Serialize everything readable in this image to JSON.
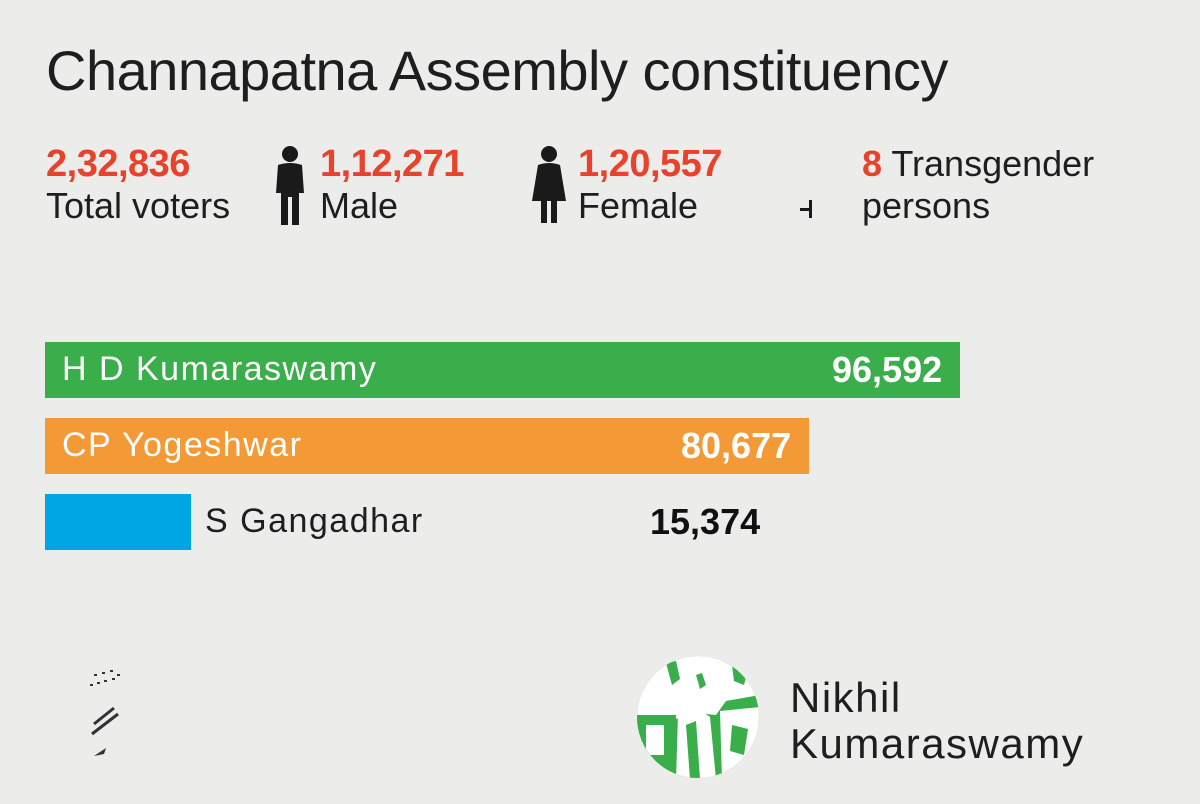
{
  "title": "Channapatna Assembly constituency",
  "stats": {
    "total": {
      "value": "2,32,836",
      "label": "Total voters"
    },
    "male": {
      "value": "1,12,271",
      "label": "Male",
      "icon": "male-person-icon"
    },
    "female": {
      "value": "1,20,557",
      "label": "Female",
      "icon": "female-person-icon"
    },
    "transgender": {
      "value": "8",
      "label_line1": "Transgender",
      "label_line2": "persons",
      "icon": "transgender-symbol-icon"
    }
  },
  "chart_data": {
    "type": "bar",
    "orientation": "horizontal",
    "categories": [
      "H D Kumaraswamy",
      "CP Yogeshwar",
      "S Gangadhar"
    ],
    "values": [
      96592,
      80677,
      15374
    ],
    "value_labels": [
      "96,592",
      "80,677",
      "15,374"
    ],
    "colors": [
      "#3aae4a",
      "#f39a36",
      "#00a6e4"
    ],
    "title": "",
    "xlabel": "",
    "ylabel": "",
    "xlim": [
      0,
      96592
    ],
    "grid": false,
    "legend": "none"
  },
  "winner": {
    "line1": "Nikhil",
    "line2": "Kumaraswamy",
    "icon": "candidate-photo-icon"
  },
  "colors": {
    "accent_red": "#e8412c",
    "green": "#3aae4a",
    "orange": "#f39a36",
    "blue": "#00a6e4",
    "background": "#ececeb"
  }
}
